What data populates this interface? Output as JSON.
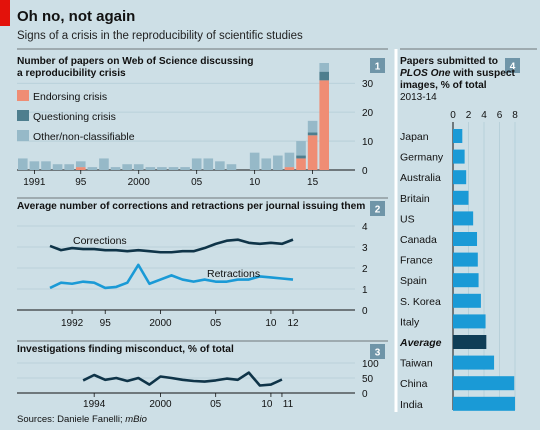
{
  "title": "Oh no, not again",
  "subtitle": "Signs of a crisis in the reproducibility of scientific studies",
  "source": "Sources: Daniele Fanelli; ",
  "source_italic": "mBio",
  "colors": {
    "background": "#cddfe6",
    "endorsing": "#ef8d74",
    "questioning": "#4e7e8e",
    "other": "#96b9c8",
    "line": "#0f3448",
    "retractions": "#1a9ad6",
    "bar_country": "#1a9ad6",
    "bar_average": "#0f3d56",
    "number_badge": "#6f95a8",
    "accent_red": "#e3120b"
  },
  "chart_data": [
    {
      "id": 1,
      "type": "bar",
      "stacked": true,
      "title": "Number of papers on Web of Science discussing a reproducibility crisis",
      "legend": [
        "Endorsing crisis",
        "Questioning crisis",
        "Other/non-classifiable"
      ],
      "x": [
        1990,
        1991,
        1992,
        1993,
        1994,
        1995,
        1996,
        1997,
        1998,
        1999,
        2000,
        2001,
        2002,
        2003,
        2004,
        2005,
        2006,
        2007,
        2008,
        2009,
        2010,
        2011,
        2012,
        2013,
        2014,
        2015,
        2016
      ],
      "x_ticks": [
        "1991",
        "95",
        "2000",
        "05",
        "10",
        "15"
      ],
      "y_ticks": [
        "0",
        "10",
        "20",
        "30"
      ],
      "ylim": [
        0,
        37
      ],
      "series": [
        {
          "name": "Endorsing crisis",
          "values": [
            0,
            0,
            0,
            0,
            0,
            1,
            0,
            0,
            0,
            0,
            0,
            0,
            0,
            0,
            0,
            0,
            0,
            0,
            0,
            0,
            0,
            0,
            0,
            1,
            4,
            12,
            31
          ]
        },
        {
          "name": "Questioning crisis",
          "values": [
            0,
            0,
            0,
            0,
            0,
            0,
            0,
            0,
            0,
            0,
            0,
            0,
            0,
            0,
            0,
            0,
            0,
            0,
            0,
            0,
            0,
            0,
            0,
            0,
            1,
            1,
            3
          ]
        },
        {
          "name": "Other/non-classifiable",
          "values": [
            4,
            3,
            3,
            2,
            2,
            2,
            1,
            4,
            1,
            2,
            2,
            1,
            1,
            1,
            1,
            4,
            4,
            3,
            2,
            0,
            6,
            4,
            5,
            5,
            5,
            4,
            3
          ]
        }
      ]
    },
    {
      "id": 2,
      "type": "line",
      "title": "Average number of corrections and retractions per journal issuing them",
      "x": [
        1990,
        1991,
        1992,
        1993,
        1994,
        1995,
        1996,
        1997,
        1998,
        1999,
        2000,
        2001,
        2002,
        2003,
        2004,
        2005,
        2006,
        2007,
        2008,
        2009,
        2010,
        2011,
        2012
      ],
      "x_ticks": [
        "1992",
        "95",
        "2000",
        "05",
        "10",
        "12"
      ],
      "y_ticks": [
        "0",
        "1",
        "2",
        "3",
        "4"
      ],
      "ylim": [
        0,
        4
      ],
      "series": [
        {
          "name": "Corrections",
          "values": [
            3.05,
            2.85,
            2.95,
            2.9,
            2.9,
            2.85,
            2.85,
            2.8,
            2.85,
            2.8,
            2.75,
            2.75,
            2.8,
            2.8,
            2.95,
            3.15,
            3.3,
            3.35,
            3.2,
            3.15,
            3.2,
            3.15,
            3.35
          ]
        },
        {
          "name": "Retractions",
          "values": [
            1.05,
            1.3,
            1.25,
            1.35,
            1.3,
            1.05,
            1.1,
            1.3,
            2.15,
            1.25,
            1.45,
            1.65,
            1.45,
            1.35,
            1.45,
            1.35,
            1.35,
            1.45,
            1.45,
            1.6,
            1.55,
            1.5,
            1.45
          ]
        }
      ]
    },
    {
      "id": 3,
      "type": "line",
      "title": "Investigations finding misconduct, % of total",
      "x": [
        1993,
        1994,
        1995,
        1996,
        1997,
        1998,
        1999,
        2000,
        2001,
        2002,
        2003,
        2004,
        2005,
        2006,
        2007,
        2008,
        2009,
        2010,
        2011
      ],
      "x_ticks": [
        "1994",
        "2000",
        "05",
        "10",
        "11"
      ],
      "y_ticks": [
        "0",
        "50",
        "100"
      ],
      "ylim": [
        0,
        100
      ],
      "series": [
        {
          "name": "",
          "values": [
            42,
            60,
            44,
            50,
            40,
            50,
            28,
            55,
            50,
            44,
            40,
            38,
            42,
            48,
            44,
            68,
            25,
            28,
            45
          ]
        }
      ]
    },
    {
      "id": 4,
      "type": "bar",
      "orientation": "horizontal",
      "title": "Papers submitted to PLOS One with suspect images, % of total",
      "title_plain": "Papers submitted to",
      "title_italic": "PLOS One",
      "title_rest": "with suspect",
      "title_line3": "images, % of total",
      "period": "2013-14",
      "x_ticks": [
        "0",
        "2",
        "4",
        "6",
        "8"
      ],
      "xlim": [
        0,
        8
      ],
      "categories": [
        "Japan",
        "Germany",
        "Australia",
        "Britain",
        "US",
        "Canada",
        "France",
        "Spain",
        "S. Korea",
        "Italy",
        "Average",
        "Taiwan",
        "China",
        "India"
      ],
      "values": [
        1.2,
        1.5,
        1.7,
        2.0,
        2.6,
        3.1,
        3.2,
        3.3,
        3.6,
        4.2,
        4.3,
        5.3,
        7.9,
        8.0
      ],
      "highlight": "Average"
    }
  ]
}
